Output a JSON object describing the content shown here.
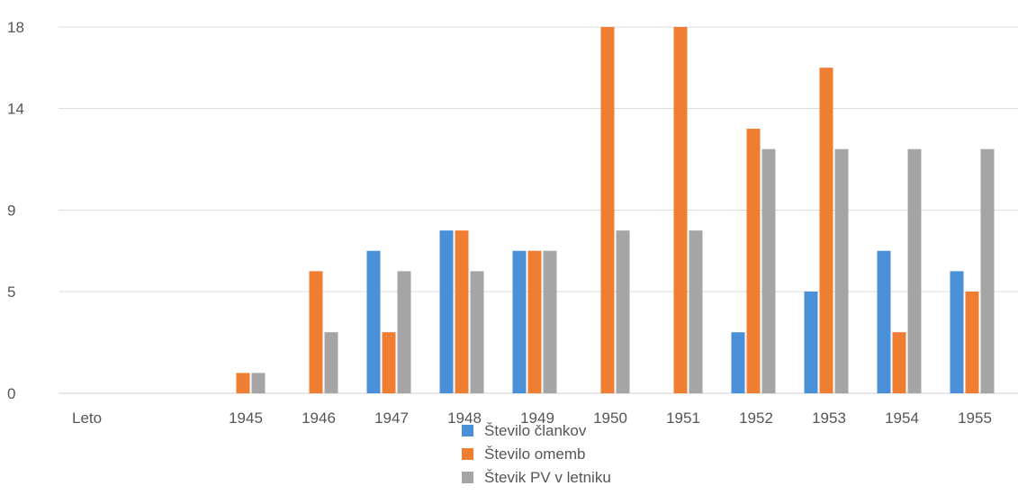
{
  "chart_data": {
    "type": "bar",
    "categories": [
      "Leto",
      "1945",
      "1946",
      "1947",
      "1948",
      "1949",
      "1950",
      "1951",
      "1952",
      "1953",
      "1954",
      "1955"
    ],
    "series": [
      {
        "name": "Število člankov",
        "color": "#4a90d9",
        "values": [
          0,
          0,
          0,
          7,
          8,
          7,
          0,
          0,
          3,
          5,
          7,
          6
        ]
      },
      {
        "name": "Število omemb",
        "color": "#ef7d32",
        "values": [
          0,
          1,
          6,
          3,
          8,
          7,
          18,
          18,
          13,
          16,
          3,
          5
        ]
      },
      {
        "name": "Števik PV v letniku",
        "color": "#a5a5a5",
        "values": [
          0,
          1,
          3,
          6,
          6,
          7,
          8,
          8,
          12,
          12,
          12,
          12
        ]
      }
    ],
    "yticks": [
      "0",
      "5",
      "9",
      "14",
      "18"
    ],
    "ylim": [
      0,
      18
    ],
    "grid": true,
    "legend_position": "bottom"
  }
}
